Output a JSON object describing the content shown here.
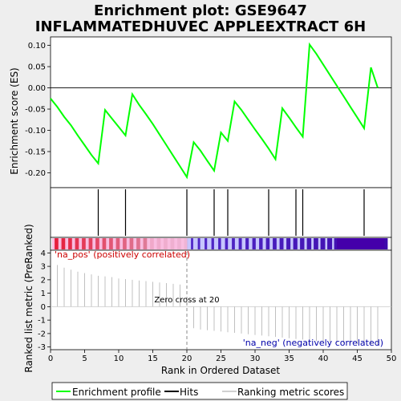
{
  "chart_data": {
    "type": "line",
    "title_line1": "Enrichment plot: GSE9647",
    "title_line2": "INFLAMMATEDHUVEC APPLEEXTRACT 6H",
    "xlabel": "Rank in Ordered Dataset",
    "ylabel_top": "Enrichment score (ES)",
    "ylabel_bottom": "Ranked list metric (PreRanked)",
    "xlim": [
      0,
      50
    ],
    "x_ticks": [
      "0",
      "5",
      "10",
      "15",
      "20",
      "25",
      "30",
      "35",
      "40",
      "45",
      "50"
    ],
    "es_ylim": [
      -0.235,
      0.12
    ],
    "es_y_ticks": [
      {
        "value": 0.1,
        "label": "0.10"
      },
      {
        "value": 0.05,
        "label": "0.05"
      },
      {
        "value": 0.0,
        "label": "0.00"
      },
      {
        "value": -0.05,
        "label": "-0.05"
      },
      {
        "value": -0.1,
        "label": "-0.10"
      },
      {
        "value": -0.15,
        "label": "-0.15"
      },
      {
        "value": -0.2,
        "label": "-0.20"
      }
    ],
    "es_curve": {
      "name": "Enrichment profile",
      "color": "#00ff00",
      "x": [
        0,
        1,
        2,
        3,
        4,
        5,
        6,
        7,
        8,
        9,
        10,
        11,
        12,
        13,
        14,
        15,
        16,
        17,
        18,
        19,
        20,
        21,
        22,
        23,
        24,
        25,
        26,
        27,
        28,
        29,
        30,
        31,
        32,
        33,
        34,
        35,
        36,
        37,
        38,
        39,
        40,
        41,
        42,
        43,
        44,
        45,
        46,
        47,
        48
      ],
      "y": [
        -0.025,
        -0.045,
        -0.068,
        -0.088,
        -0.112,
        -0.135,
        -0.158,
        -0.178,
        -0.052,
        -0.072,
        -0.092,
        -0.112,
        -0.015,
        -0.04,
        -0.062,
        -0.085,
        -0.11,
        -0.135,
        -0.16,
        -0.185,
        -0.21,
        -0.128,
        -0.148,
        -0.172,
        -0.195,
        -0.105,
        -0.125,
        -0.032,
        -0.052,
        -0.075,
        -0.098,
        -0.12,
        -0.143,
        -0.168,
        -0.048,
        -0.07,
        -0.093,
        -0.115,
        0.102,
        0.08,
        0.055,
        0.03,
        0.005,
        -0.02,
        -0.045,
        -0.07,
        -0.095,
        0.048,
        0.0
      ]
    },
    "hits": {
      "name": "Hits",
      "color": "#000000",
      "x": [
        7,
        11,
        20,
        24,
        26,
        32,
        36,
        37,
        46
      ]
    },
    "ranking_metric": {
      "name": "Ranking metric scores",
      "color": "#c0c0c0",
      "ylim": [
        -3.2,
        4.2
      ],
      "y_ticks": [
        "4",
        "3",
        "2",
        "1",
        "0",
        "-1",
        "-2",
        "-3"
      ],
      "x": [
        1,
        2,
        3,
        4,
        5,
        6,
        7,
        8,
        9,
        10,
        11,
        12,
        13,
        14,
        15,
        16,
        17,
        18,
        19,
        21,
        22,
        23,
        24,
        25,
        26,
        27,
        28,
        29,
        30,
        31,
        32,
        33,
        34,
        35,
        36,
        37,
        38,
        39,
        40,
        41,
        42,
        43,
        44,
        45,
        46,
        47,
        48
      ],
      "values": [
        3.1,
        2.9,
        2.75,
        2.6,
        2.5,
        2.4,
        2.3,
        2.25,
        2.2,
        2.1,
        2.05,
        2.0,
        1.95,
        1.9,
        1.85,
        1.8,
        1.75,
        1.7,
        1.65,
        -1.6,
        -1.7,
        -1.75,
        -1.8,
        -1.85,
        -1.9,
        -1.95,
        -2.0,
        -2.05,
        -2.1,
        -2.15,
        -2.2,
        -2.25,
        -2.3,
        -2.35,
        -2.4,
        -2.45,
        -2.5,
        -2.55,
        -2.6,
        -2.65,
        -2.7,
        -2.72,
        -2.75,
        -2.78,
        -2.8,
        -2.82,
        -2.85
      ]
    },
    "zero_cross": {
      "x": 20,
      "label": "Zero cross at 20"
    },
    "pos_label": "'na_pos' (positively correlated)",
    "neg_label": "'na_neg' (negatively correlated)",
    "pos_label_color": "#cc0000",
    "neg_label_color": "#0000aa",
    "legend": [
      "Enrichment profile",
      "Hits",
      "Ranking metric scores"
    ],
    "legend_placement": "bottom",
    "grid": false
  }
}
